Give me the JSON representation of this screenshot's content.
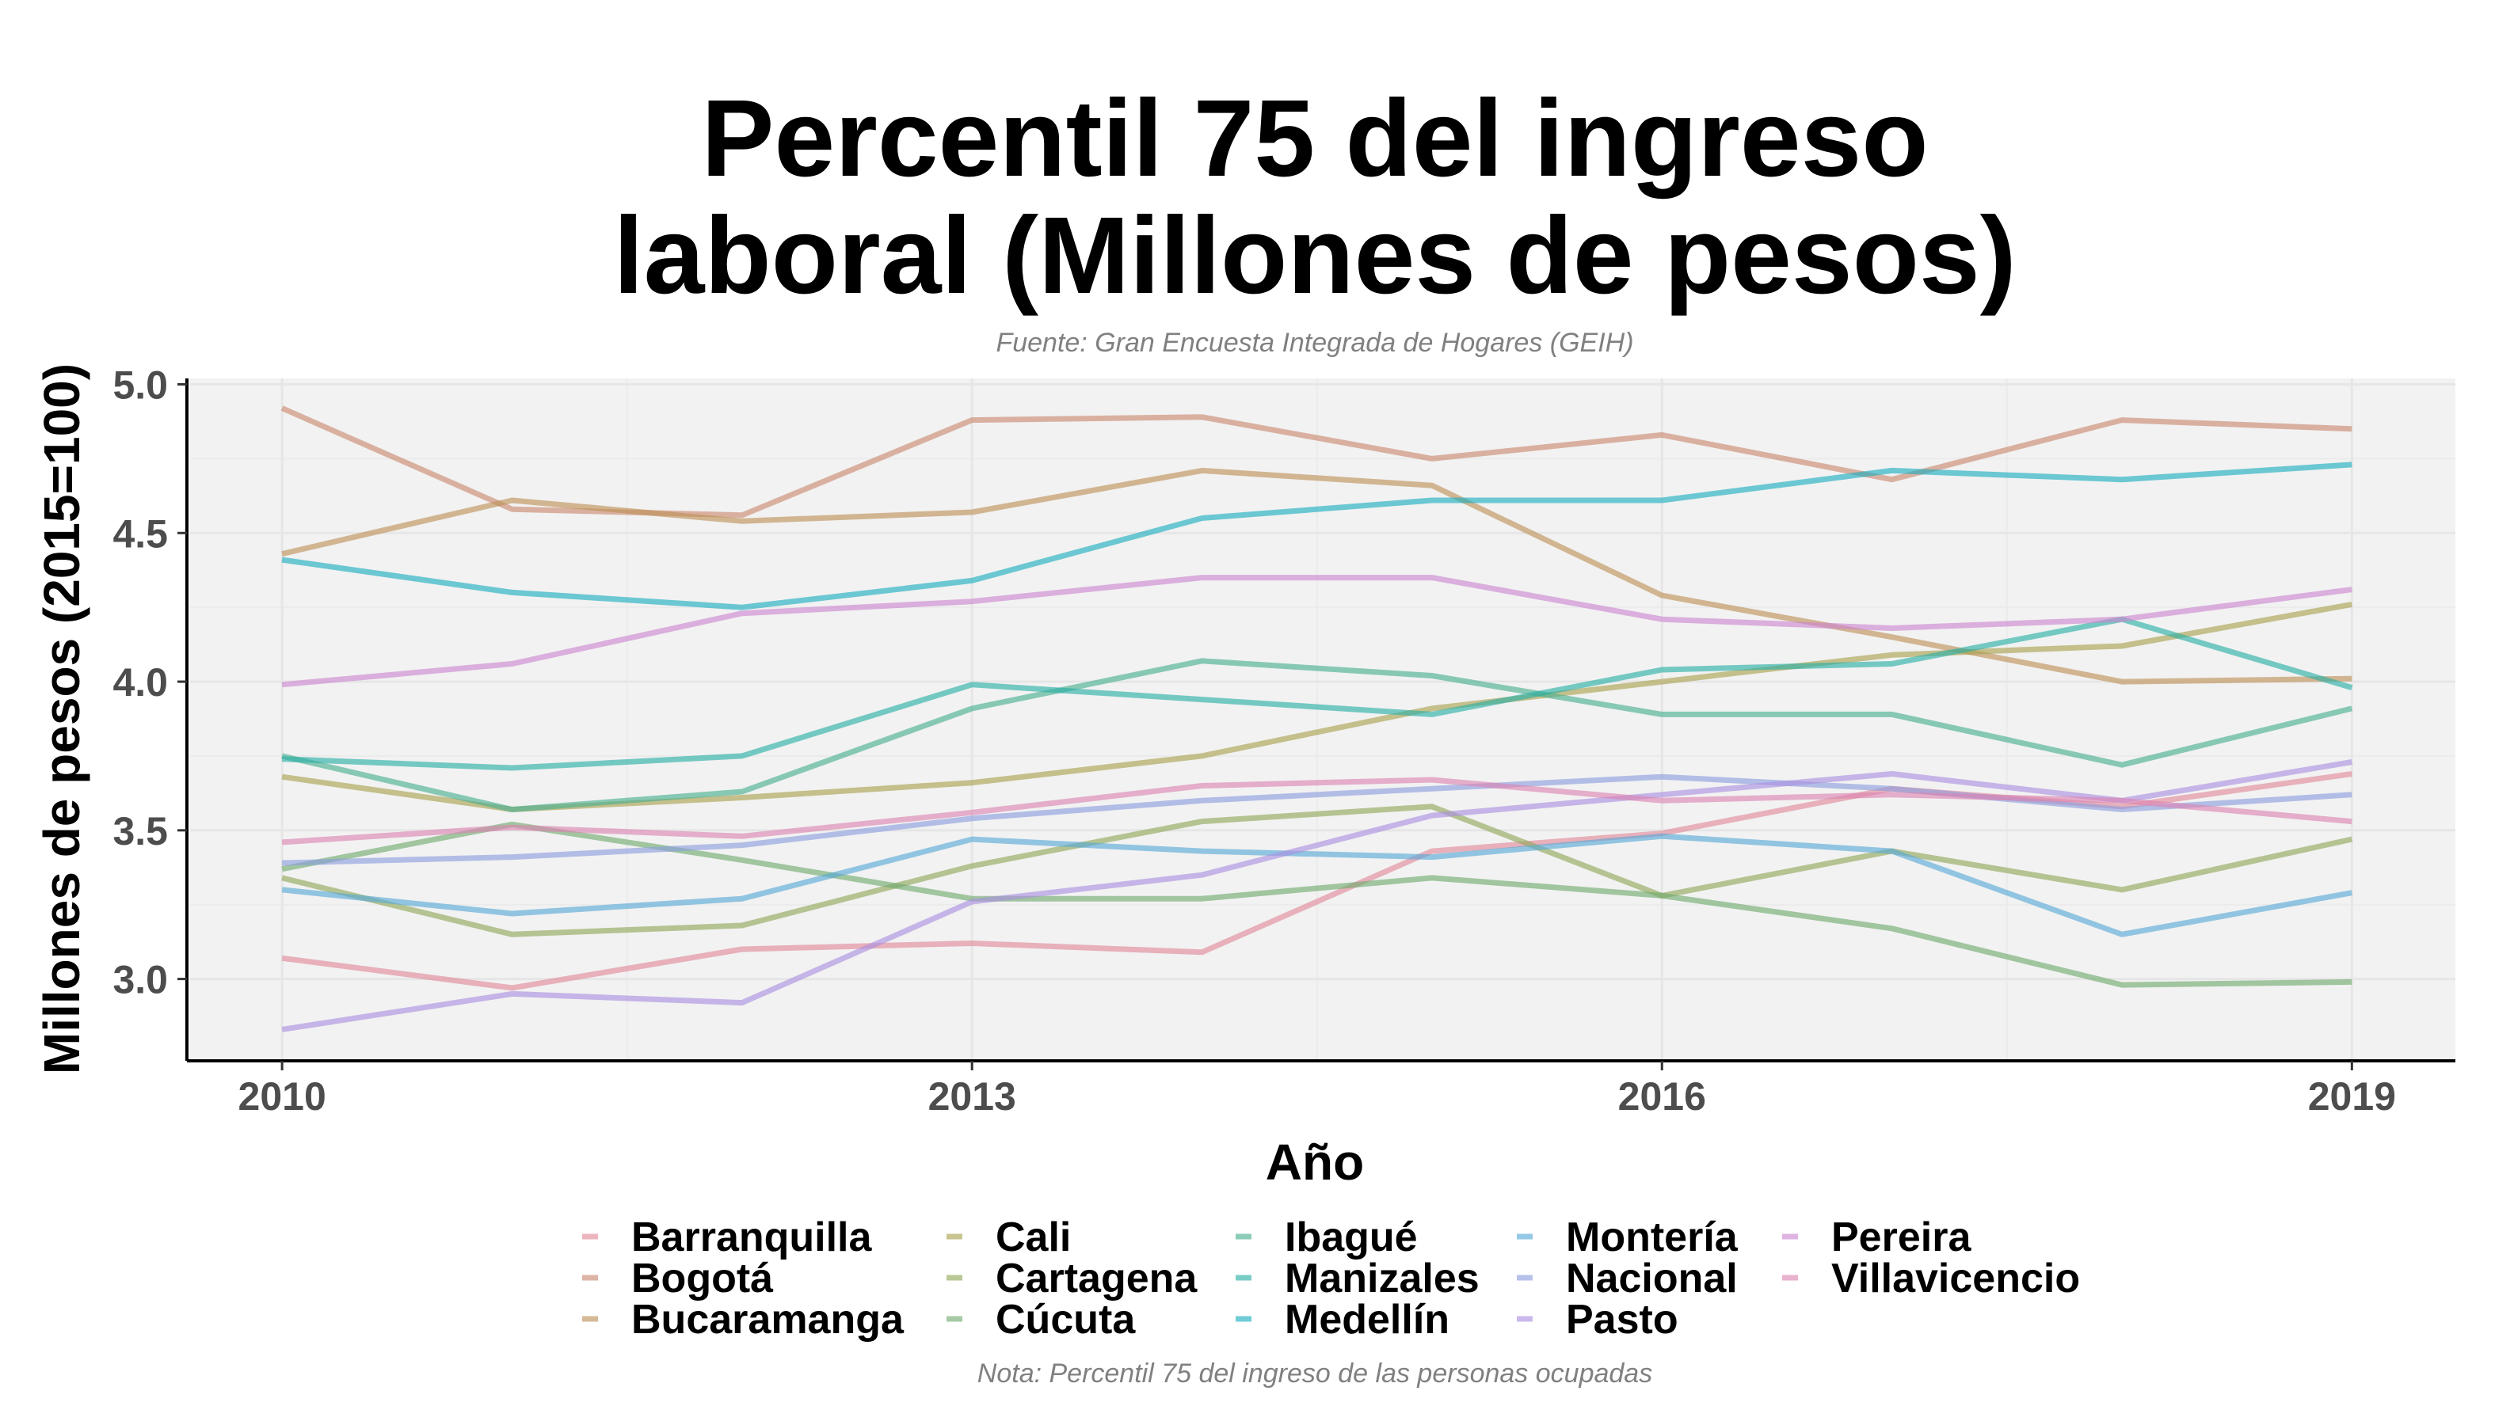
{
  "chart_data": {
    "type": "line",
    "title": [
      "Percentil 75 del ingreso",
      "laboral (Millones de pesos)"
    ],
    "subtitle": "Fuente: Gran Encuesta Integrada de Hogares (GEIH)",
    "caption": "Nota: Percentil 75 del ingreso de las personas ocupadas",
    "xlabel": "Año",
    "ylabel": "Millones de pesos (2015=100)",
    "x": [
      2010,
      2011,
      2012,
      2013,
      2014,
      2015,
      2016,
      2017,
      2018,
      2019
    ],
    "xlim": [
      2009.6,
      2019.45
    ],
    "ylim": [
      2.73,
      5.02
    ],
    "xticks": [
      2010,
      2013,
      2016,
      2019
    ],
    "yticks": [
      3.0,
      3.5,
      4.0,
      4.5,
      5.0
    ],
    "ytick_labels": [
      "3.0",
      "3.5",
      "4.0",
      "4.5",
      "5.0"
    ],
    "grid": true,
    "legend_position": "bottom",
    "series": [
      {
        "name": "Barranquilla",
        "color": "#e08898",
        "values": [
          3.07,
          2.97,
          3.1,
          3.12,
          3.09,
          3.43,
          3.49,
          3.64,
          3.58,
          3.69
        ]
      },
      {
        "name": "Bogotá",
        "color": "#c9876e",
        "values": [
          4.92,
          4.58,
          4.56,
          4.88,
          4.89,
          4.75,
          4.83,
          4.68,
          4.88,
          4.85
        ]
      },
      {
        "name": "Bucaramanga",
        "color": "#bd9055",
        "values": [
          4.43,
          4.61,
          4.54,
          4.57,
          4.71,
          4.66,
          4.29,
          4.15,
          4.0,
          4.01
        ]
      },
      {
        "name": "Cali",
        "color": "#a8a04c",
        "values": [
          3.68,
          3.57,
          3.61,
          3.66,
          3.75,
          3.91,
          4.0,
          4.09,
          4.12,
          4.26
        ]
      },
      {
        "name": "Cartagena",
        "color": "#8ea655",
        "values": [
          3.34,
          3.15,
          3.18,
          3.38,
          3.53,
          3.58,
          3.28,
          3.43,
          3.3,
          3.47
        ]
      },
      {
        "name": "Cúcuta",
        "color": "#6daa6c",
        "values": [
          3.37,
          3.52,
          3.4,
          3.27,
          3.27,
          3.34,
          3.28,
          3.17,
          2.98,
          2.99
        ]
      },
      {
        "name": "Ibagué",
        "color": "#45ae8e",
        "values": [
          3.75,
          3.57,
          3.63,
          3.91,
          4.07,
          4.02,
          3.89,
          3.89,
          3.72,
          3.91
        ]
      },
      {
        "name": "Manizales",
        "color": "#27aea5",
        "values": [
          3.74,
          3.71,
          3.75,
          3.99,
          3.94,
          3.89,
          4.04,
          4.06,
          4.21,
          3.98
        ]
      },
      {
        "name": "Medellín",
        "color": "#19adbf",
        "values": [
          4.41,
          4.3,
          4.25,
          4.34,
          4.55,
          4.61,
          4.61,
          4.71,
          4.68,
          4.73
        ]
      },
      {
        "name": "Montería",
        "color": "#56a8d6",
        "values": [
          3.3,
          3.22,
          3.27,
          3.47,
          3.43,
          3.41,
          3.48,
          3.43,
          3.15,
          3.29
        ]
      },
      {
        "name": "Nacional",
        "color": "#8a9cde",
        "values": [
          3.39,
          3.41,
          3.45,
          3.54,
          3.6,
          3.64,
          3.68,
          3.64,
          3.57,
          3.62
        ]
      },
      {
        "name": "Pasto",
        "color": "#a98ee0",
        "values": [
          2.83,
          2.95,
          2.92,
          3.26,
          3.35,
          3.55,
          3.62,
          3.69,
          3.6,
          3.73
        ]
      },
      {
        "name": "Pereira",
        "color": "#cb84d0",
        "values": [
          3.99,
          4.06,
          4.23,
          4.27,
          4.35,
          4.35,
          4.21,
          4.18,
          4.21,
          4.31
        ]
      },
      {
        "name": "Villavicencio",
        "color": "#dc82b2",
        "values": [
          3.46,
          3.51,
          3.48,
          3.56,
          3.65,
          3.67,
          3.6,
          3.62,
          3.6,
          3.53
        ]
      }
    ]
  }
}
